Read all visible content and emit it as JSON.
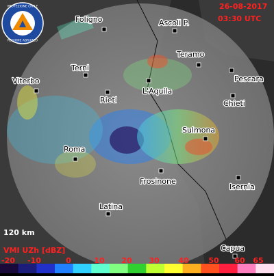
{
  "header": {
    "date": "26-08-2017",
    "time": "03:30 UTC"
  },
  "logo": {
    "top": "PROTEZIONE CIVILE",
    "bottom": "REGIONE ABRUZZO"
  },
  "cities": [
    "Foligno",
    "Ascoli P.",
    "Teramo",
    "Terni",
    "Pescara",
    "Viterbo",
    "L'Aquila",
    "Rieti",
    "Chieti",
    "Sulmona",
    "Roma",
    "Frosinone",
    "Isernia",
    "Latina",
    "Capua"
  ],
  "range": "120 km",
  "legend": {
    "title": "VMI UZh [dBZ]",
    "labels": [
      -20,
      -10,
      0,
      10,
      20,
      30,
      40,
      50,
      60,
      65
    ],
    "colors": [
      "#1a0a3a",
      "#1c1c7a",
      "#2030c8",
      "#2080ff",
      "#30d0ff",
      "#60ffd0",
      "#80ff80",
      "#30d030",
      "#c0ff30",
      "#ffff30",
      "#ffb020",
      "#ff5020",
      "#ff2040",
      "#ff80c0",
      "#ffe0f0"
    ]
  }
}
